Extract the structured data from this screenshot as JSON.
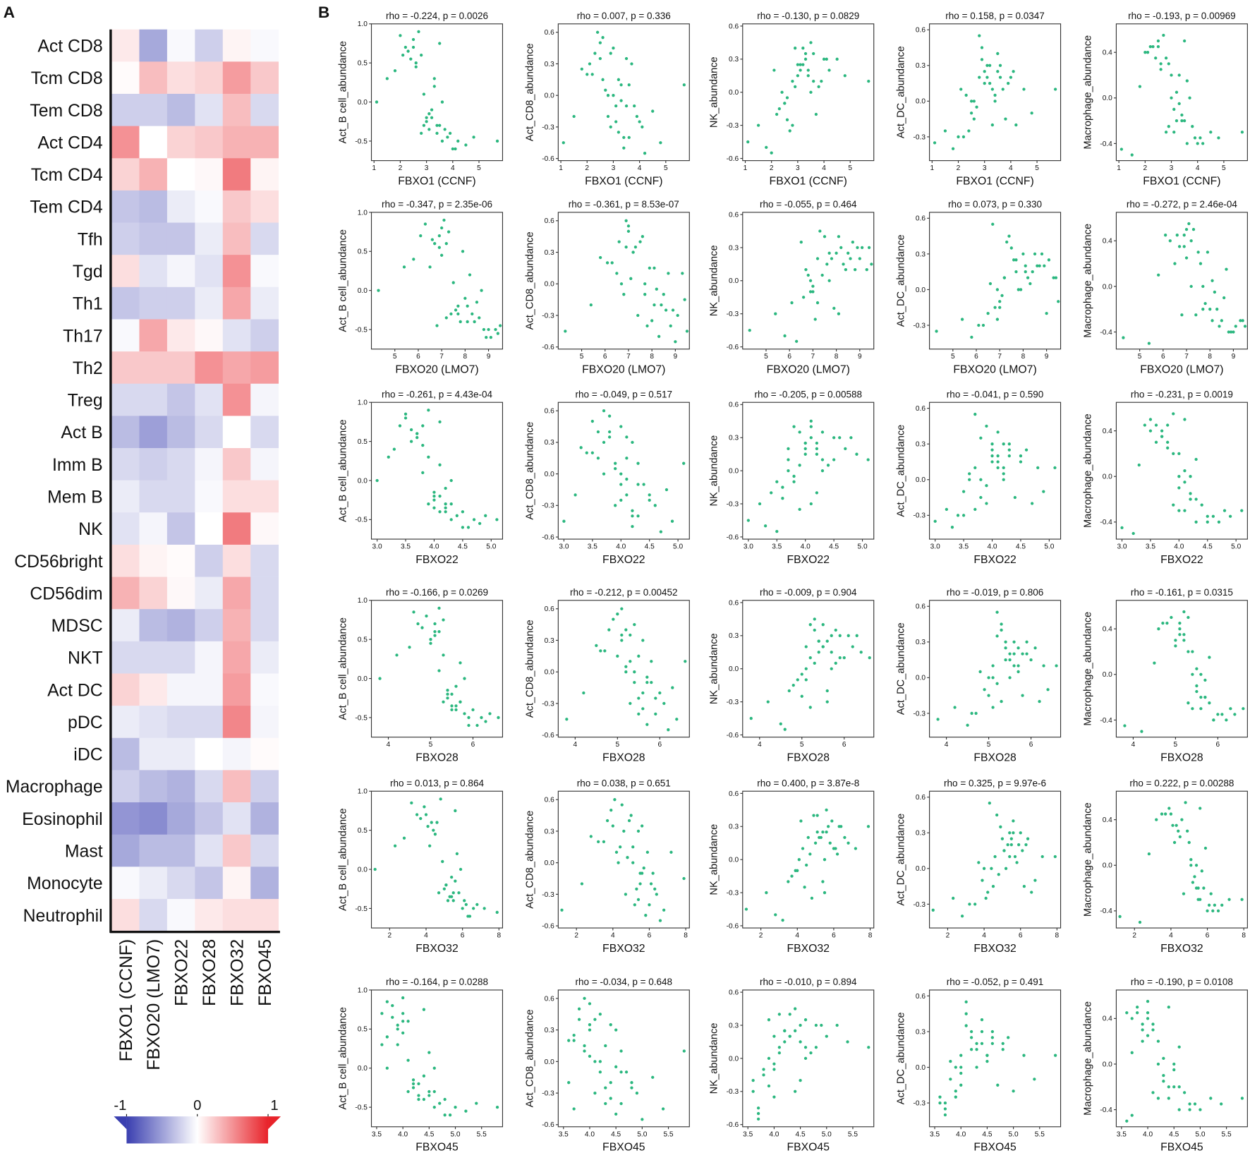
{
  "chart_data": [
    {
      "type": "heatmap",
      "panel": "A",
      "rows": [
        "Act CD8",
        "Tcm CD8",
        "Tem CD8",
        "Act CD4",
        "Tcm CD4",
        "Tem CD4",
        "Tfh",
        "Tgd",
        "Th1",
        "Th17",
        "Th2",
        "Treg",
        "Act B",
        "Imm B",
        "Mem B",
        "NK",
        "CD56bright",
        "CD56dim",
        "MDSC",
        "NKT",
        "Act DC",
        "pDC",
        "iDC",
        "Macrophage",
        "Eosinophil",
        "Mast",
        "Monocyte",
        "Neutrophil"
      ],
      "columns": [
        "FBXO1 (CCNF)",
        "FBXO20 (LMO7)",
        "FBXO22",
        "FBXO28",
        "FBXO32",
        "FBXO45"
      ],
      "values": [
        [
          0.1,
          -0.45,
          -0.03,
          -0.25,
          0.05,
          -0.03
        ],
        [
          0.02,
          0.3,
          0.15,
          0.2,
          0.45,
          0.25
        ],
        [
          -0.25,
          -0.25,
          -0.35,
          -0.15,
          0.3,
          -0.2
        ],
        [
          0.5,
          0.0,
          0.2,
          0.25,
          0.35,
          0.35
        ],
        [
          0.2,
          0.35,
          0.0,
          0.03,
          0.6,
          0.05
        ],
        [
          -0.3,
          -0.35,
          -0.1,
          -0.03,
          0.25,
          0.15
        ],
        [
          -0.25,
          -0.3,
          -0.3,
          -0.1,
          0.3,
          -0.2
        ],
        [
          0.15,
          -0.15,
          -0.05,
          -0.15,
          0.5,
          -0.03
        ],
        [
          -0.3,
          -0.25,
          -0.25,
          -0.1,
          0.4,
          -0.1
        ],
        [
          -0.03,
          0.4,
          0.1,
          0.03,
          -0.15,
          -0.25
        ],
        [
          0.25,
          0.25,
          0.25,
          0.5,
          0.4,
          0.45
        ],
        [
          -0.2,
          -0.2,
          -0.3,
          -0.15,
          0.5,
          -0.05
        ],
        [
          -0.35,
          -0.5,
          -0.35,
          -0.2,
          0.0,
          -0.2
        ],
        [
          -0.2,
          -0.25,
          -0.2,
          -0.05,
          0.25,
          -0.05
        ],
        [
          -0.1,
          -0.2,
          -0.2,
          -0.03,
          0.15,
          0.15
        ],
        [
          -0.15,
          -0.05,
          -0.3,
          0.0,
          0.6,
          0.03
        ],
        [
          0.15,
          0.05,
          0.02,
          -0.25,
          0.15,
          -0.2
        ],
        [
          0.35,
          0.2,
          0.03,
          -0.1,
          0.4,
          -0.2
        ],
        [
          -0.1,
          -0.35,
          -0.4,
          -0.25,
          0.35,
          -0.2
        ],
        [
          -0.2,
          -0.2,
          -0.2,
          -0.05,
          0.4,
          -0.1
        ],
        [
          0.2,
          0.1,
          -0.05,
          -0.05,
          0.45,
          -0.03
        ],
        [
          -0.1,
          -0.15,
          -0.2,
          -0.2,
          0.55,
          -0.05
        ],
        [
          -0.35,
          -0.1,
          -0.1,
          0.0,
          -0.05,
          0.02
        ],
        [
          -0.25,
          -0.35,
          -0.4,
          -0.2,
          0.3,
          -0.25
        ],
        [
          -0.55,
          -0.6,
          -0.45,
          -0.3,
          -0.15,
          -0.4
        ],
        [
          -0.45,
          -0.35,
          -0.35,
          -0.15,
          0.25,
          -0.2
        ],
        [
          -0.03,
          -0.1,
          -0.2,
          -0.3,
          0.05,
          -0.4
        ],
        [
          0.15,
          -0.2,
          -0.03,
          0.1,
          0.15,
          0.15
        ]
      ],
      "colorscale": [
        "#3a3fb0",
        "#ffffff",
        "#e8232a"
      ],
      "zlim": [
        -1,
        1
      ],
      "colorbar_ticks": [
        -1,
        0,
        1
      ]
    },
    {
      "type": "scatter_matrix",
      "panel": "B",
      "point_color": "#2bb77f",
      "genes": [
        {
          "name": "FBXO1 (CCNF)",
          "xlim": [
            0.9,
            5.9
          ],
          "xticks": [
            1,
            2,
            3,
            4,
            5
          ],
          "values": [
            2.1,
            2.8,
            3.3,
            3.6,
            2.5,
            3.0,
            4.1,
            2.2,
            3.4,
            2.9,
            3.8,
            1.1,
            2.6,
            3.1,
            3.5,
            4.5,
            2.4,
            3.2,
            2.7,
            3.9,
            1.8,
            3.0,
            3.3,
            4.2,
            2.3,
            2.9,
            3.6,
            5.7,
            2.0,
            3.4,
            3.1,
            2.6,
            4.0,
            3.7,
            2.8,
            1.5,
            3.2,
            4.8,
            2.5,
            3.5
          ]
        },
        {
          "name": "FBXO20 (LMO7)",
          "xlim": [
            4.0,
            9.6
          ],
          "xticks": [
            5,
            6,
            7,
            8,
            9
          ],
          "values": [
            7.2,
            8.1,
            6.5,
            8.8,
            7.0,
            7.7,
            9.1,
            6.1,
            8.3,
            7.5,
            6.8,
            4.3,
            7.9,
            8.6,
            7.3,
            9.4,
            6.9,
            8.0,
            7.1,
            8.4,
            5.8,
            7.6,
            8.2,
            9.0,
            6.6,
            7.4,
            8.7,
            9.3,
            6.3,
            7.8,
            8.5,
            7.0,
            8.9,
            7.2,
            6.7,
            5.4,
            8.1,
            9.5,
            6.9,
            7.7
          ]
        },
        {
          "name": "FBXO22",
          "xlim": [
            2.9,
            5.2
          ],
          "xticks": [
            {
              "value": 3.0,
              "label": "3.0"
            },
            3.5,
            {
              "value": 4.0,
              "label": "4.0"
            },
            4.5,
            {
              "value": 5.0,
              "label": "5.0"
            }
          ],
          "values": [
            3.7,
            4.1,
            3.9,
            4.3,
            3.5,
            4.0,
            4.6,
            3.4,
            4.2,
            3.8,
            4.4,
            3.0,
            3.6,
            4.0,
            4.1,
            4.8,
            3.7,
            4.2,
            3.9,
            4.5,
            3.3,
            4.0,
            4.1,
            4.7,
            3.6,
            3.9,
            4.3,
            5.1,
            3.5,
            4.2,
            4.0,
            3.8,
            4.5,
            4.2,
            3.7,
            3.2,
            4.1,
            4.9,
            3.8,
            4.3
          ]
        },
        {
          "name": "FBXO28",
          "xlim": [
            3.6,
            6.7
          ],
          "xticks": [
            4,
            5,
            6
          ],
          "values": [
            5.1,
            5.6,
            5.3,
            5.9,
            4.9,
            5.4,
            6.1,
            4.7,
            5.7,
            5.2,
            5.8,
            3.8,
            5.0,
            5.5,
            5.3,
            6.3,
            5.1,
            5.6,
            5.2,
            6.0,
            4.5,
            5.4,
            5.7,
            6.2,
            4.8,
            5.3,
            5.8,
            6.6,
            4.6,
            5.5,
            5.4,
            5.0,
            5.9,
            5.6,
            5.2,
            4.2,
            5.5,
            6.4,
            5.1,
            5.7
          ]
        },
        {
          "name": "FBXO32",
          "xlim": [
            1.0,
            8.2
          ],
          "xticks": [
            2,
            4,
            6,
            8
          ],
          "values": [
            4.6,
            5.5,
            4.2,
            6.0,
            3.9,
            5.1,
            6.4,
            3.5,
            5.8,
            4.9,
            6.2,
            1.2,
            4.4,
            5.3,
            5.6,
            7.9,
            4.1,
            5.4,
            4.8,
            6.1,
            2.8,
            5.0,
            5.7,
            6.6,
            3.7,
            4.7,
            5.9,
            7.2,
            3.2,
            5.2,
            5.6,
            4.5,
            6.3,
            5.4,
            4.3,
            2.3,
            5.1,
            6.8,
            4.0,
            5.5
          ]
        },
        {
          "name": "FBXO45",
          "xlim": [
            3.4,
            5.9
          ],
          "xticks": [
            3.5,
            {
              "value": 4.0,
              "label": "4.0"
            },
            4.5,
            {
              "value": 5.0,
              "label": "5.0"
            },
            5.5
          ],
          "values": [
            4.0,
            4.4,
            3.9,
            4.6,
            3.8,
            4.2,
            4.9,
            3.6,
            4.5,
            4.1,
            4.7,
            3.7,
            3.9,
            4.3,
            4.4,
            5.2,
            3.9,
            4.4,
            4.0,
            4.8,
            3.7,
            4.2,
            4.5,
            5.0,
            3.8,
            4.1,
            4.6,
            5.8,
            3.7,
            4.3,
            4.2,
            4.0,
            4.8,
            4.5,
            4.1,
            3.6,
            4.3,
            5.4,
            4.0,
            4.6
          ]
        }
      ],
      "cells": [
        {
          "name": "Act_B cell_abundance",
          "ylim": [
            -0.75,
            1.0
          ],
          "yticks": [
            -0.5,
            {
              "value": 0.0,
              "label": "0.0"
            },
            0.5,
            {
              "value": 1.0,
              "label": "1.0"
            }
          ],
          "values": [
            0.6,
            -0.4,
            0.3,
            -0.5,
            0.8,
            -0.2,
            -0.6,
            0.7,
            -0.3,
            0.1,
            -0.45,
            0.0,
            0.5,
            -0.35,
            0.75,
            -0.55,
            0.55,
            -0.1,
            0.9,
            -0.4,
            0.4,
            -0.25,
            0.2,
            -0.5,
            0.65,
            -0.3,
            0.0,
            -0.5,
            0.85,
            -0.4,
            -0.15,
            0.45,
            -0.6,
            -0.35,
            0.6,
            0.3,
            -0.2,
            -0.45,
            0.7,
            -0.3
          ]
        },
        {
          "name": "Act_CD8_abundance",
          "ylim": [
            -0.62,
            0.68
          ],
          "yticks": [
            -0.6,
            -0.3,
            {
              "value": 0.0,
              "label": "0.0"
            },
            0.3,
            0.6
          ],
          "values": [
            0.3,
            -0.2,
            0.1,
            -0.4,
            0.5,
            0.0,
            -0.3,
            0.2,
            -0.5,
            0.4,
            -0.1,
            -0.45,
            0.15,
            -0.25,
            0.35,
            -0.15,
            0.6,
            -0.35,
            0.05,
            -0.2,
            0.25,
            0.45,
            -0.05,
            -0.55,
            0.4,
            -0.3,
            0.1,
            0.1,
            0.2,
            -0.4,
            -0.1,
            0.55,
            -0.25,
            0.3,
            0.0,
            -0.2,
            0.15,
            -0.45,
            0.35,
            -0.1
          ]
        },
        {
          "name": "NK_abundance",
          "ylim": [
            -0.62,
            0.62
          ],
          "yticks": [
            -0.6,
            -0.3,
            {
              "value": 0.0,
              "label": "0.0"
            },
            0.3,
            0.6
          ],
          "values": [
            0.2,
            -0.3,
            0.35,
            0.1,
            -0.1,
            0.25,
            0.3,
            -0.2,
            0.15,
            0.4,
            0.05,
            -0.45,
            -0.25,
            0.2,
            0.45,
            0.3,
            0.0,
            0.25,
            -0.35,
            0.1,
            -0.5,
            0.15,
            0.3,
            0.2,
            -0.15,
            0.05,
            0.35,
            0.1,
            -0.55,
            0.2,
            0.25,
            -0.05,
            0.3,
            -0.2,
            0.1,
            -0.3,
            0.4,
            0.15,
            -0.1,
            0.0
          ]
        },
        {
          "name": "Act_DC_abundance",
          "ylim": [
            -0.5,
            0.65
          ],
          "yticks": [
            -0.3,
            {
              "value": 0.0,
              "label": "0.0"
            },
            0.3,
            0.6
          ],
          "values": [
            0.1,
            0.2,
            -0.2,
            0.3,
            -0.1,
            0.15,
            0.25,
            -0.3,
            0.05,
            0.35,
            -0.15,
            -0.35,
            0.0,
            0.2,
            0.4,
            0.1,
            -0.25,
            0.3,
            -0.05,
            0.15,
            -0.4,
            0.25,
            0.1,
            -0.2,
            0.05,
            0.45,
            0.2,
            0.1,
            -0.3,
            0.0,
            0.3,
            -0.15,
            0.2,
            0.1,
            0.55,
            -0.25,
            0.15,
            -0.1,
            0.0,
            0.25
          ]
        },
        {
          "name": "Macrophage_abundance",
          "ylim": [
            -0.55,
            0.65
          ],
          "yticks": [
            -0.4,
            {
              "value": 0.0,
              "label": "0.0"
            },
            0.4
          ],
          "values": [
            0.4,
            -0.3,
            0.2,
            -0.4,
            0.5,
            0.0,
            -0.35,
            0.45,
            -0.2,
            0.3,
            -0.25,
            -0.45,
            0.3,
            -0.1,
            0.5,
            -0.3,
            0.35,
            -0.2,
            0.55,
            -0.35,
            0.1,
            0.2,
            -0.05,
            -0.4,
            0.45,
            -0.25,
            0.15,
            -0.3,
            0.4,
            -0.15,
            -0.3,
            0.25,
            -0.4,
            0.0,
            0.35,
            -0.5,
            0.05,
            -0.35,
            0.45,
            -0.2
          ]
        }
      ],
      "titles": [
        [
          "rho = -0.224, p = 0.0026",
          "rho = 0.007, p = 0.336",
          "rho = -0.130, p = 0.0829",
          "rho = 0.158, p = 0.0347",
          "rho = -0.193, p = 0.00969"
        ],
        [
          "rho = -0.347, p = 2.35e-06",
          "rho = -0.361, p = 8.53e-07",
          "rho = -0.055, p = 0.464",
          "rho = 0.073, p = 0.330",
          "rho = -0.272, p = 2.46e-04"
        ],
        [
          "rho = -0.261, p = 4.43e-04",
          "rho = -0.049, p = 0.517",
          "rho = -0.205, p = 0.00588",
          "rho = -0.041, p = 0.590",
          "rho = -0.231, p = 0.0019"
        ],
        [
          "rho = -0.166, p = 0.0269",
          "rho = -0.212, p = 0.00452",
          "rho = -0.009, p = 0.904",
          "rho = -0.019, p = 0.806",
          "rho = -0.161, p = 0.0315"
        ],
        [
          "rho = 0.013, p = 0.864",
          "rho = 0.038, p = 0.651",
          "rho = 0.400, p = 3.87e-8",
          "rho = 0.325, p = 9.97e-6",
          "rho = 0.222, p = 0.00288"
        ],
        [
          "rho = -0.164, p = 0.0288",
          "rho = -0.034, p = 0.648",
          "rho = -0.010, p = 0.894",
          "rho = -0.052, p = 0.491",
          "rho = -0.190, p = 0.0108"
        ]
      ]
    }
  ]
}
